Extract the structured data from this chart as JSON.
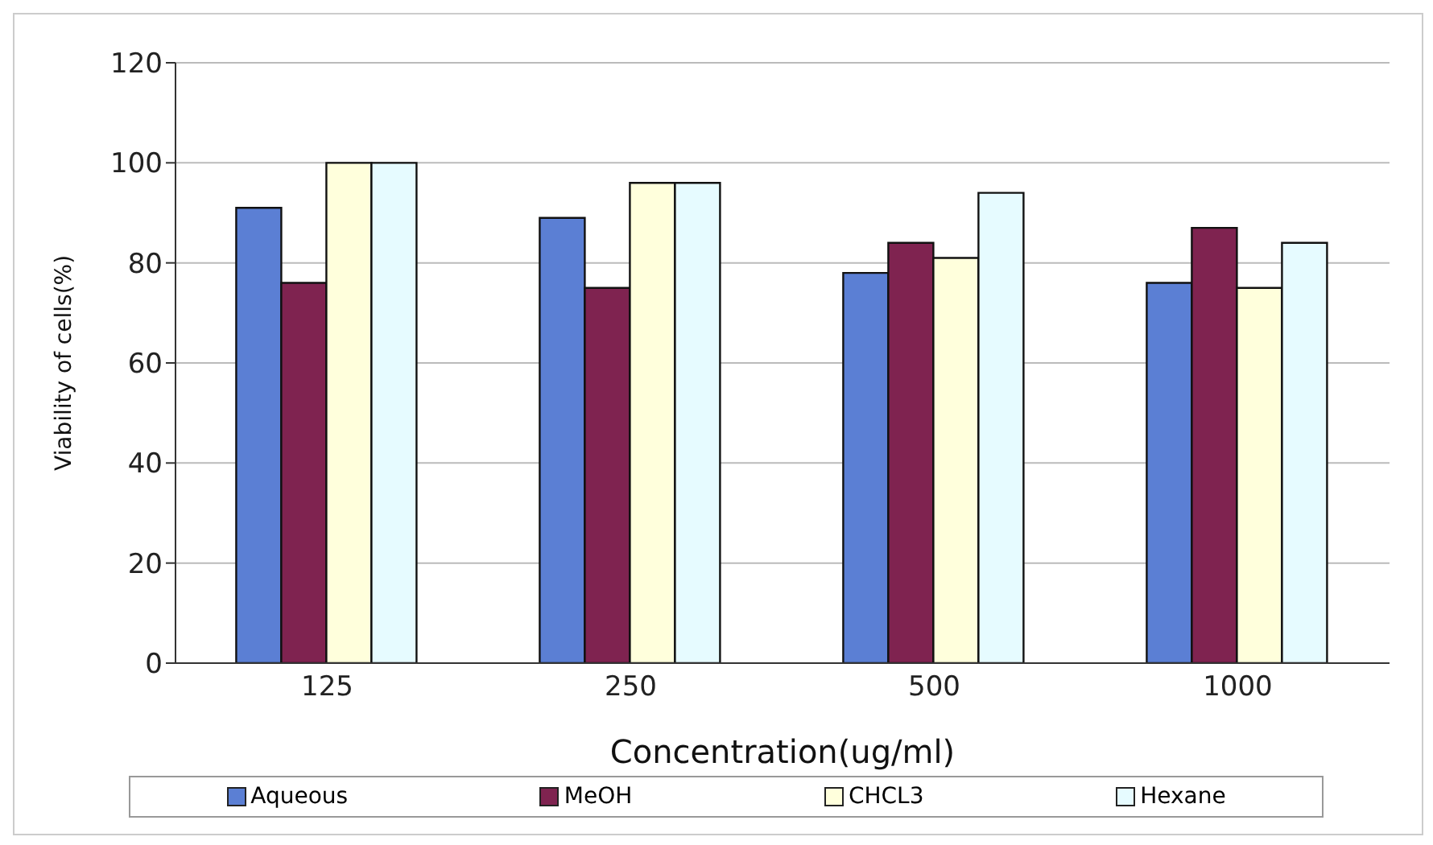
{
  "chart_data": {
    "type": "bar",
    "xlabel": "Concentration(ug/ml)",
    "ylabel": "Viability of cells(%)",
    "categories": [
      "125",
      "250",
      "500",
      "1000"
    ],
    "series": [
      {
        "name": "Aqueous",
        "color": "#5b7fd4",
        "values": [
          91,
          89,
          78,
          76
        ]
      },
      {
        "name": "MeOH",
        "color": "#7f2350",
        "values": [
          76,
          75,
          84,
          87
        ]
      },
      {
        "name": "CHCL3",
        "color": "#ffffdc",
        "values": [
          100,
          96,
          81,
          75
        ]
      },
      {
        "name": "Hexane",
        "color": "#e6fbff",
        "values": [
          100,
          96,
          94,
          84
        ]
      }
    ],
    "ylim": [
      0,
      120
    ],
    "yticks": [
      0,
      20,
      40,
      60,
      80,
      100,
      120
    ],
    "grid": "y",
    "legend": "bottom"
  }
}
